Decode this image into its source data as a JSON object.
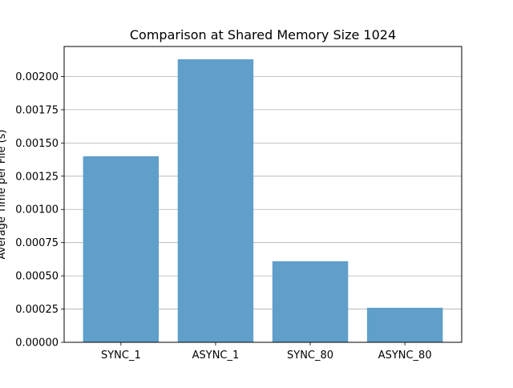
{
  "chart_data": {
    "type": "bar",
    "title": "Comparison at Shared Memory Size 1024",
    "xlabel": "",
    "ylabel": "Average Time per File (s)",
    "categories": [
      "SYNC_1",
      "ASYNC_1",
      "SYNC_80",
      "ASYNC_80"
    ],
    "values": [
      0.0014,
      0.00213,
      0.00061,
      0.00026
    ],
    "ylim": [
      0,
      0.002226
    ],
    "yticks": [
      0,
      0.00025,
      0.0005,
      0.00075,
      0.001,
      0.00125,
      0.0015,
      0.00175,
      0.002
    ],
    "ytick_labels": [
      "0.00000",
      "0.00025",
      "0.00050",
      "0.00075",
      "0.00100",
      "0.00125",
      "0.00150",
      "0.00175",
      "0.00200"
    ],
    "grid": "y",
    "legend": "none",
    "bar_color": "#5f9fca",
    "grid_color": "#b0b0b0",
    "axis_color": "#000000"
  }
}
